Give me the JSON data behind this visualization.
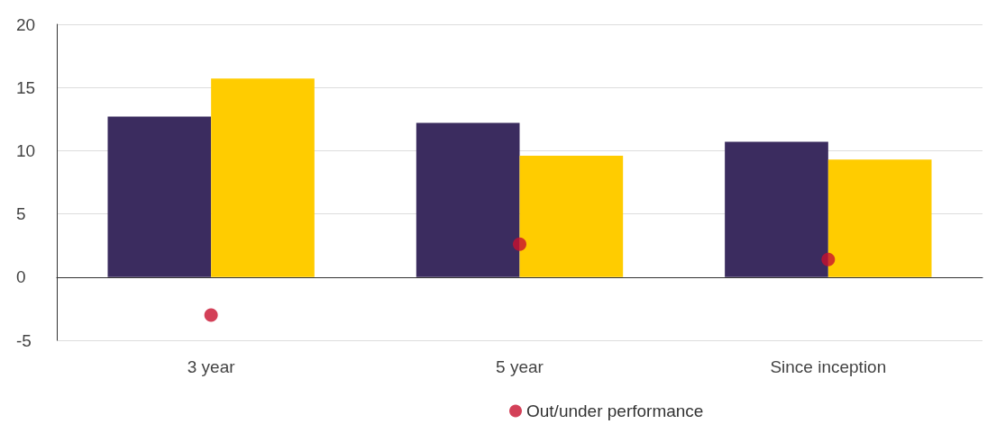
{
  "chart_data": {
    "type": "bar",
    "categories": [
      "3 year",
      "5 year",
      "Since inception"
    ],
    "series": [
      {
        "color": "#3b2c5f",
        "values": [
          12.7,
          12.2,
          10.7
        ]
      },
      {
        "color": "#ffcc00",
        "values": [
          15.7,
          9.6,
          9.3
        ]
      },
      {
        "name": "Out/under performance",
        "type": "scatter",
        "color": "#c8102e",
        "x": [
          "3 year",
          "5 year",
          "Since inception"
        ],
        "values": [
          -3.0,
          2.6,
          1.4
        ]
      }
    ],
    "ylim": [
      -5,
      20
    ],
    "yticks": [
      -5,
      0,
      5,
      10,
      15,
      20
    ],
    "grid": "y",
    "legend": "bottom",
    "marker": "circle"
  }
}
